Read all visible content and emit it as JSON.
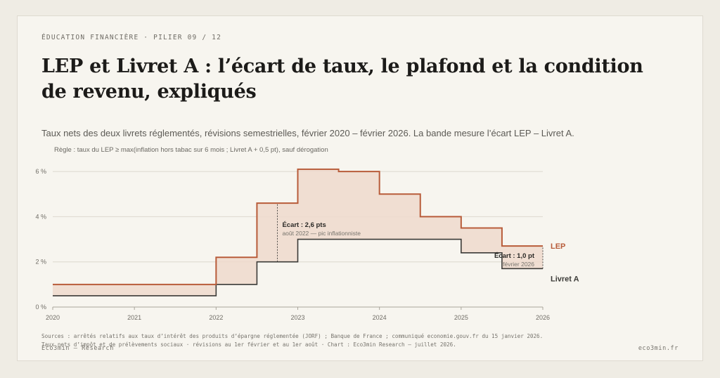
{
  "header": {
    "eyebrow": "ÉDUCATION FINANCIÈRE  ·  PILIER 09 / 12",
    "title": "LEP et Livret A : l’écart de taux, le plafond et la condition de revenu, expliqués",
    "subtitle": "Taux nets des deux livrets réglementés, révisions semestrielles, février 2020 – février 2026. La bande mesure l’écart LEP – Livret A.",
    "rule": "Règle : taux du LEP ≥ max(inflation hors tabac sur 6 mois ; Livret A + 0,5 pt), sauf dérogation"
  },
  "colors": {
    "lep": "#b85c3a",
    "livret_a": "#3b3a37",
    "band": "#efd9cc",
    "grid": "#dcd8ce"
  },
  "chart_data": {
    "type": "line",
    "step": true,
    "xlim": [
      2020,
      2026
    ],
    "ylim": [
      0,
      6.5
    ],
    "x_ticks": [
      2020,
      2021,
      2022,
      2023,
      2024,
      2025,
      2026
    ],
    "x_tick_labels": [
      "2020",
      "2021",
      "2022",
      "2023",
      "2024",
      "2025",
      "2026"
    ],
    "y_ticks": [
      0,
      2,
      4,
      6
    ],
    "y_tick_labels": [
      "0 %",
      "2 %",
      "4 %",
      "6 %"
    ],
    "grid": true,
    "series": [
      {
        "name": "LEP",
        "color": "#b85c3a",
        "points": [
          [
            2020,
            1.0
          ],
          [
            2022.0,
            2.2
          ],
          [
            2022.5,
            4.6
          ],
          [
            2023.0,
            6.1
          ],
          [
            2023.5,
            6.0
          ],
          [
            2024.0,
            5.0
          ],
          [
            2024.5,
            4.0
          ],
          [
            2025.0,
            3.5
          ],
          [
            2025.5,
            2.7
          ],
          [
            2026,
            2.7
          ]
        ]
      },
      {
        "name": "Livret A",
        "color": "#3b3a37",
        "points": [
          [
            2020,
            0.5
          ],
          [
            2022.0,
            1.0
          ],
          [
            2022.5,
            2.0
          ],
          [
            2023.0,
            3.0
          ],
          [
            2025.0,
            2.4
          ],
          [
            2025.5,
            1.7
          ],
          [
            2026,
            1.7
          ]
        ]
      }
    ],
    "annotations": [
      {
        "x": 2022.75,
        "y1": 2.0,
        "y2": 4.6,
        "label": "Écart : 2,6 pts",
        "sublabel": "août 2022 — pic inflationniste",
        "placement": "right"
      },
      {
        "x": 2026,
        "y1": 1.7,
        "y2": 2.7,
        "label": "Écart : 1,0 pt",
        "sublabel": "février 2026",
        "placement": "left"
      }
    ]
  },
  "footer": {
    "sources_line1": "Sources : arrêtés relatifs aux taux d’intérêt des produits d’épargne réglementée (JORF) ; Banque de France ; communiqué economie.gouv.fr du 15 janvier 2026.",
    "sources_line2": "Taux nets d’impôt et de prélèvements sociaux · révisions au 1er février et au 1er août · Chart : Eco3min Research — juillet 2026.",
    "brand_left": "Eco3min — Research",
    "brand_right": "eco3min.fr"
  }
}
